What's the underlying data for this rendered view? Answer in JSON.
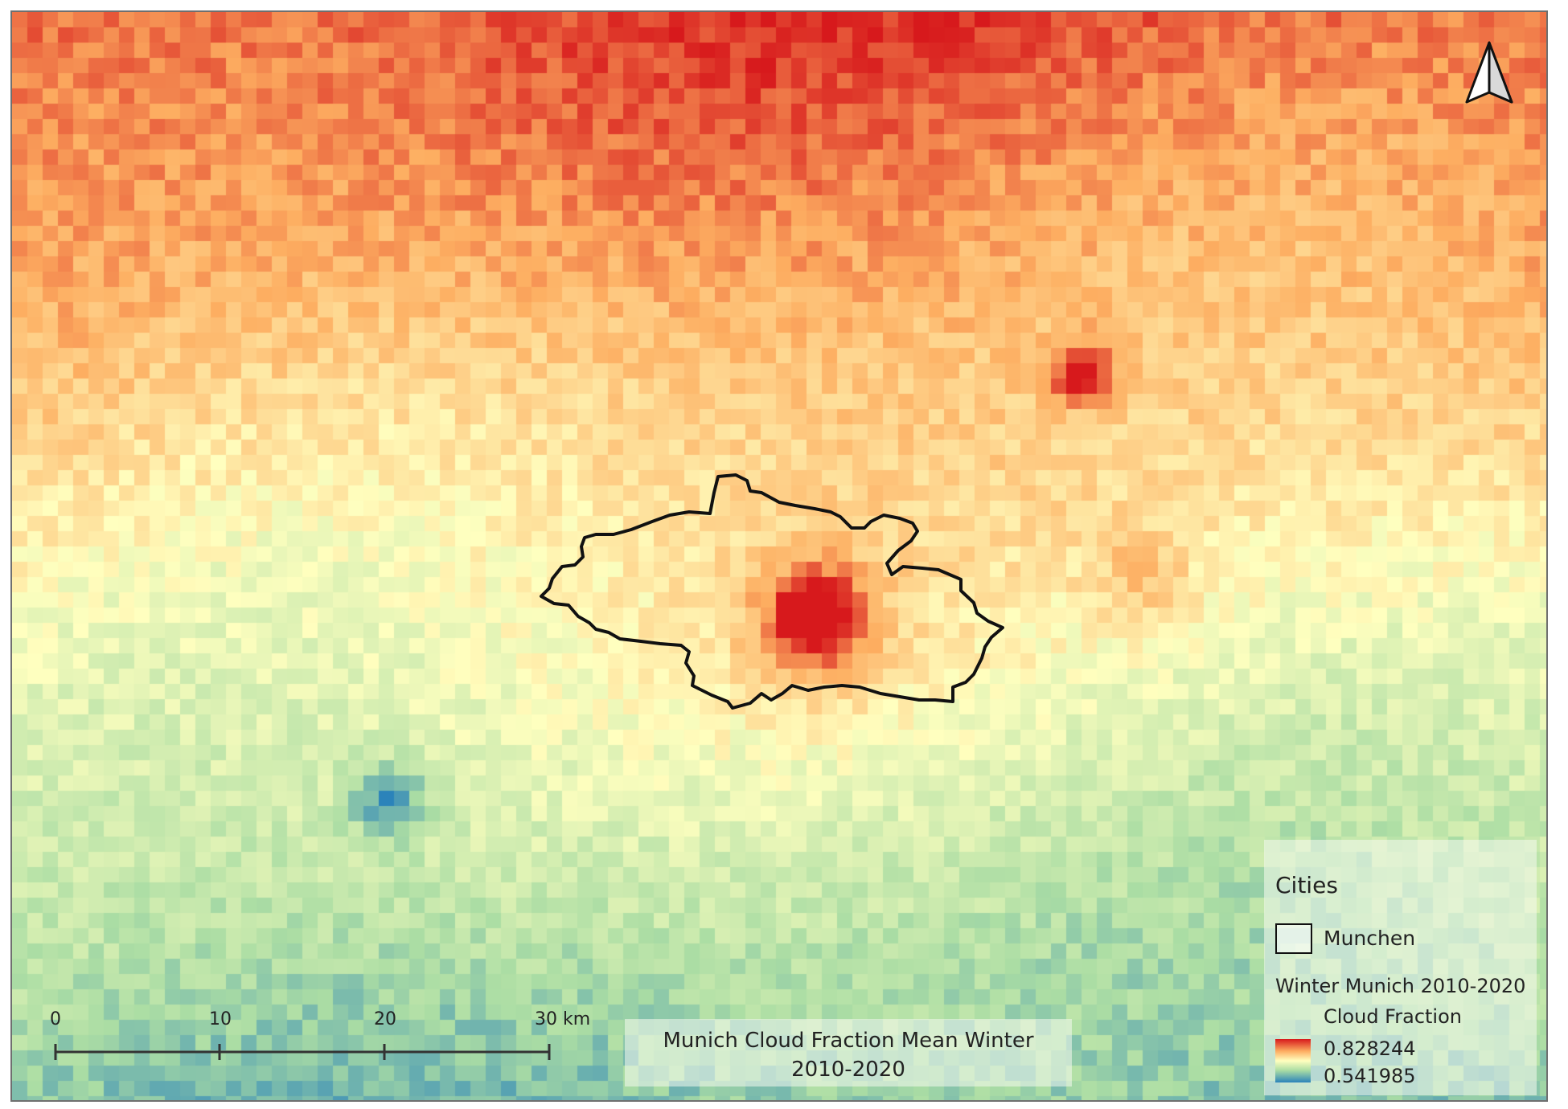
{
  "map": {
    "title_line1": "Munich Cloud Fraction Mean Winter",
    "title_line2": "2010-2020",
    "outline_color": "#111111",
    "color_ramp": [
      "#d7191c",
      "#fdae61",
      "#ffffbf",
      "#abdda4",
      "#2b83ba"
    ]
  },
  "legend": {
    "group_title": "Cities",
    "city_layer_label": "Munchen",
    "raster_title": "Winter Munich 2010-2020",
    "raster_subtitle": "Cloud Fraction",
    "max_value": "0.828244",
    "min_value": "0.541985"
  },
  "scale_bar": {
    "labels": [
      "0",
      "10",
      "20",
      "30 km"
    ]
  },
  "north_arrow": {
    "icon": "north-arrow-icon"
  }
}
